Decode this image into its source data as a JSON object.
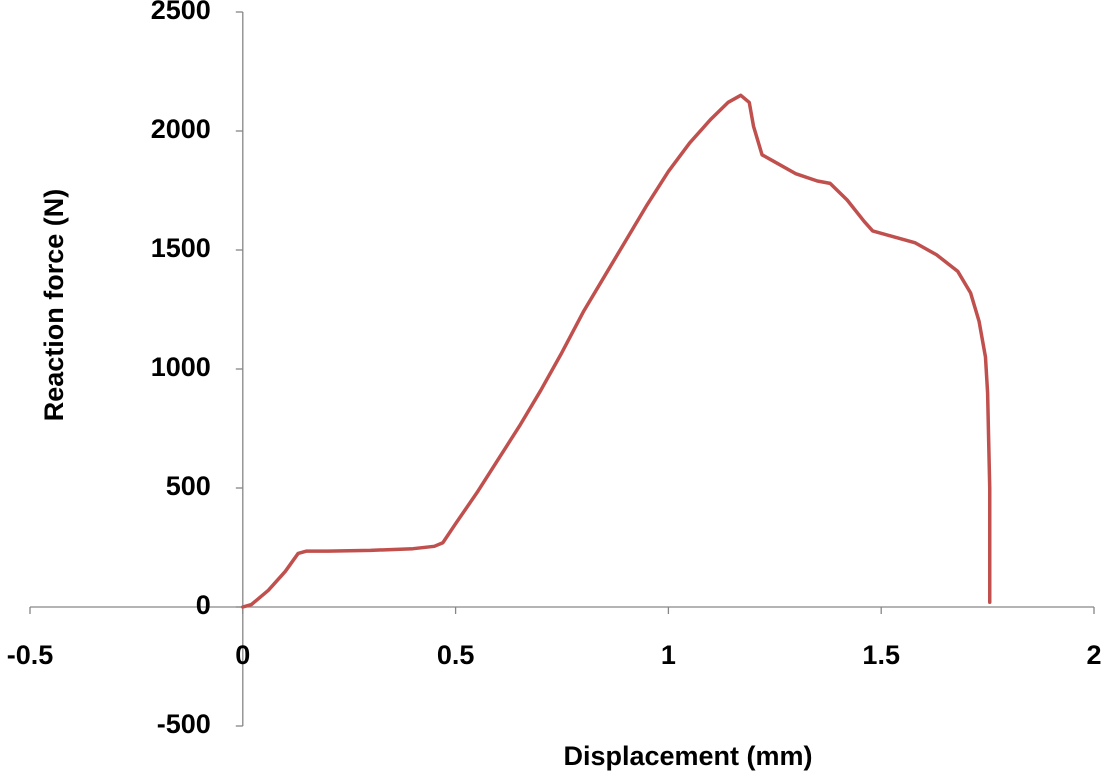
{
  "chart_data": {
    "type": "line",
    "x_label": "Displacement (mm)",
    "y_label": "Reaction force (N)",
    "xlim": [
      -0.5,
      2
    ],
    "xticks": [
      -0.5,
      0,
      0.5,
      1,
      1.5,
      2
    ],
    "ylim": [
      -500,
      2500
    ],
    "yticks": [
      -500,
      0,
      500,
      1000,
      1500,
      2000,
      2500
    ],
    "grid": false,
    "series": [
      {
        "color": "#c0504d",
        "x": [
          0,
          0.02,
          0.06,
          0.1,
          0.13,
          0.15,
          0.2,
          0.3,
          0.4,
          0.45,
          0.47,
          0.5,
          0.55,
          0.6,
          0.65,
          0.7,
          0.75,
          0.8,
          0.85,
          0.9,
          0.95,
          1.0,
          1.05,
          1.1,
          1.14,
          1.17,
          1.19,
          1.2,
          1.22,
          1.25,
          1.3,
          1.35,
          1.38,
          1.42,
          1.46,
          1.48,
          1.52,
          1.58,
          1.63,
          1.68,
          1.71,
          1.73,
          1.745,
          1.75,
          1.755,
          1.755
        ],
        "values": [
          0,
          10,
          70,
          150,
          225,
          235,
          235,
          238,
          245,
          255,
          270,
          350,
          480,
          620,
          760,
          910,
          1070,
          1240,
          1390,
          1540,
          1690,
          1830,
          1950,
          2050,
          2120,
          2150,
          2120,
          2020,
          1900,
          1870,
          1820,
          1790,
          1780,
          1710,
          1620,
          1580,
          1560,
          1530,
          1480,
          1410,
          1320,
          1200,
          1050,
          900,
          500,
          20
        ]
      }
    ]
  }
}
